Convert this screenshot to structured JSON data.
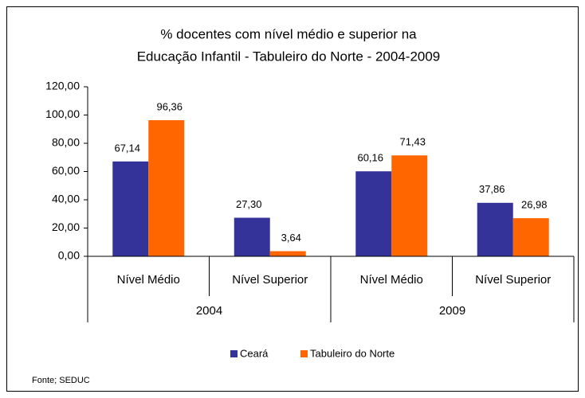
{
  "chart_data": {
    "type": "bar",
    "title": [
      "% docentes com nível médio e superior na",
      "Educação Infantil - Tabuleiro do Norte - 2004-2009"
    ],
    "categories": [
      "Nível Médio",
      "Nível Superior",
      "Nível Médio",
      "Nível Superior"
    ],
    "groups": [
      "2004",
      "2009"
    ],
    "series": [
      {
        "name": "Ceará",
        "color": "#333399",
        "values": [
          67.14,
          27.3,
          60.16,
          37.86
        ],
        "value_labels": [
          "67,14",
          "27,30",
          "60,16",
          "37,86"
        ]
      },
      {
        "name": "Tabuleiro do Norte",
        "color": "#ff6600",
        "values": [
          96.36,
          3.64,
          71.43,
          26.98
        ],
        "value_labels": [
          "96,36",
          "3,64",
          "71,43",
          "26,98"
        ]
      }
    ],
    "ylim": [
      0,
      120
    ],
    "yticks": [
      {
        "value": 0,
        "label": "0,00"
      },
      {
        "value": 20,
        "label": "20,00"
      },
      {
        "value": 40,
        "label": "40,00"
      },
      {
        "value": 60,
        "label": "60,00"
      },
      {
        "value": 80,
        "label": "80,00"
      },
      {
        "value": 100,
        "label": "100,00"
      },
      {
        "value": 120,
        "label": "120,00"
      }
    ],
    "source": "Fonte; SEDUC"
  }
}
